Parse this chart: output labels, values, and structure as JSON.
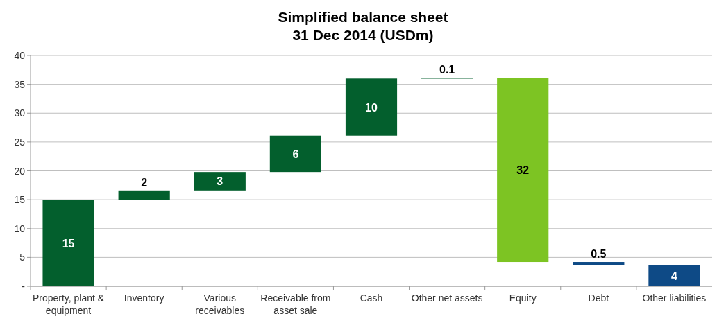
{
  "chart_data": {
    "type": "bar",
    "title": "Simplified balance sheet\n31 Dec 2014 (USDm)",
    "categories": [
      "Property, plant & equipment",
      "Inventory",
      "Various receivables",
      "Receivable from asset sale",
      "Cash",
      "Other net assets",
      "Equity",
      "Debt",
      "Other liabilities"
    ],
    "values": [
      15,
      1.6,
      3.2,
      6.3,
      9.9,
      0.1,
      31.9,
      0.5,
      3.7
    ],
    "base": [
      0,
      15,
      16.6,
      19.8,
      26.1,
      36,
      4.2,
      3.7,
      0
    ],
    "colors": [
      "#035f2d",
      "#035f2d",
      "#035f2d",
      "#035f2d",
      "#035f2d",
      "#035f2d",
      "#7dc423",
      "#0e4a86",
      "#0e4a86"
    ],
    "value_labels": [
      "15",
      "2",
      "3",
      "6",
      "10",
      "0.1",
      "32",
      "0.5",
      "4"
    ],
    "ylim": [
      0,
      40
    ],
    "yticks": [
      {
        "value": 0,
        "label": "-"
      },
      5,
      10,
      15,
      20,
      25,
      30,
      35,
      40
    ],
    "grid": "y"
  }
}
